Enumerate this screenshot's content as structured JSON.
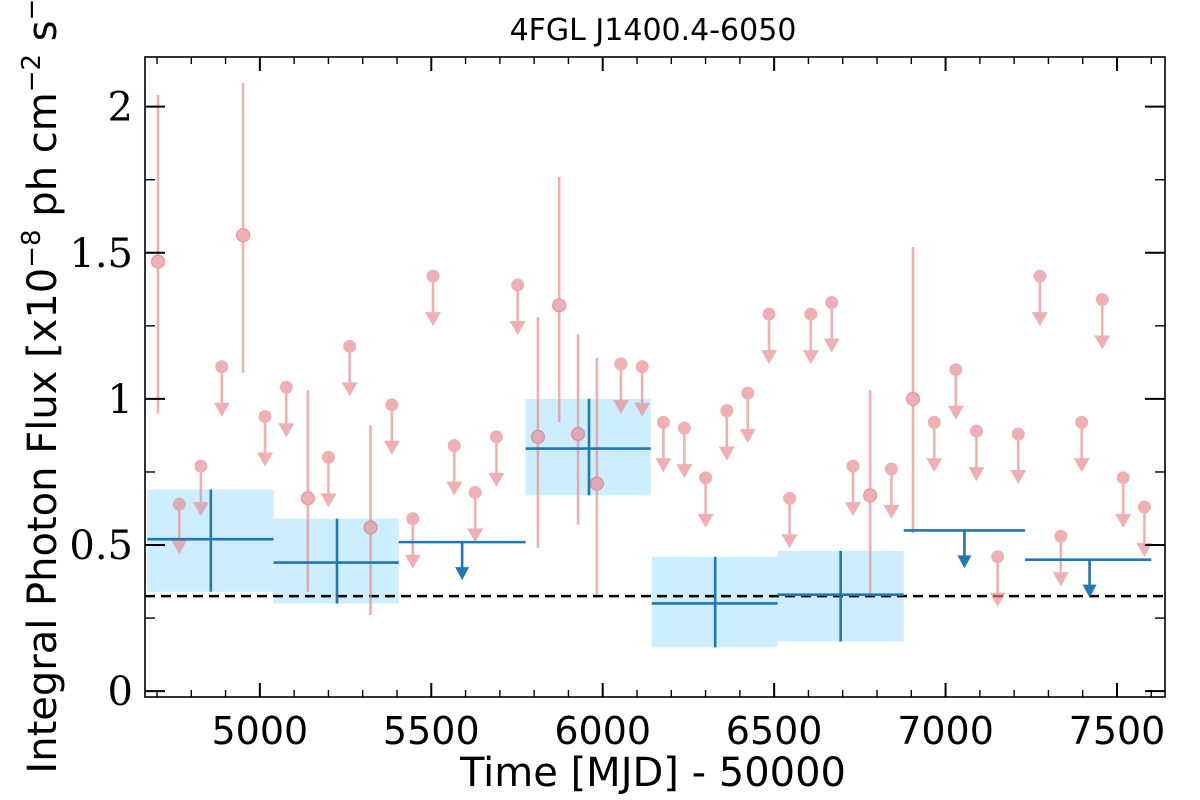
{
  "chart_data": {
    "type": "scatter",
    "title": "4FGL J1400.4-6050",
    "xlabel": "Time [MJD] - 50000",
    "ylabel": "Integral Photon Flux [x10^-8 ph cm^-2 s^-1]",
    "ylabel_parts": [
      "Integral Photon Flux [x10",
      "−8",
      " ph cm",
      "−2",
      " s",
      "−1",
      "]"
    ],
    "xlim": [
      4665,
      7640
    ],
    "ylim": [
      -0.02,
      2.17
    ],
    "xticks": [
      5000,
      5500,
      6000,
      6500,
      7000,
      7500
    ],
    "yticks": [
      0,
      0.5,
      1,
      1.5,
      2
    ],
    "ytick_labels": [
      "0",
      "0.5",
      "1",
      "1.5",
      "2"
    ],
    "grid": false,
    "reference_line": {
      "y": 0.325,
      "style": "dashed",
      "color": "#000000"
    },
    "colors": {
      "short_bins": "#e8878d",
      "long_bins": "#1f77b4",
      "long_bin_band": "#cdeeff"
    },
    "series": [
      {
        "points": [
          {
            "x": 4703,
            "y": 1.47,
            "ylo": 0.95,
            "yhi": 2.04
          },
          {
            "x": 4951,
            "y": 1.56,
            "ylo": 1.09,
            "yhi": 2.08
          },
          {
            "x": 5140,
            "y": 0.66,
            "ylo": 0.34,
            "yhi": 1.03
          },
          {
            "x": 5323,
            "y": 0.56,
            "ylo": 0.26,
            "yhi": 0.91
          },
          {
            "x": 5811,
            "y": 0.87,
            "ylo": 0.49,
            "yhi": 1.28
          },
          {
            "x": 5873,
            "y": 1.32,
            "ylo": 0.92,
            "yhi": 1.76
          },
          {
            "x": 5928,
            "y": 0.88,
            "ylo": 0.57,
            "yhi": 1.22
          },
          {
            "x": 5983,
            "y": 0.71,
            "ylo": 0.33,
            "yhi": 1.14
          },
          {
            "x": 6905,
            "y": 1.0,
            "ylo": 0.54,
            "yhi": 1.52
          },
          {
            "x": 6780,
            "y": 0.67,
            "ylo": 0.33,
            "yhi": 1.03
          }
        ],
        "upper_limits": [
          {
            "x": 4765,
            "y": 0.64
          },
          {
            "x": 4828,
            "y": 0.77
          },
          {
            "x": 4889,
            "y": 1.11
          },
          {
            "x": 5015,
            "y": 0.94
          },
          {
            "x": 5077,
            "y": 1.04
          },
          {
            "x": 5200,
            "y": 0.8
          },
          {
            "x": 5262,
            "y": 1.18
          },
          {
            "x": 5385,
            "y": 0.98
          },
          {
            "x": 5446,
            "y": 0.59
          },
          {
            "x": 5505,
            "y": 1.42
          },
          {
            "x": 5567,
            "y": 0.84
          },
          {
            "x": 5628,
            "y": 0.68
          },
          {
            "x": 5690,
            "y": 0.87
          },
          {
            "x": 5752,
            "y": 1.39
          },
          {
            "x": 6053,
            "y": 1.12
          },
          {
            "x": 6115,
            "y": 1.11
          },
          {
            "x": 6177,
            "y": 0.92
          },
          {
            "x": 6238,
            "y": 0.9
          },
          {
            "x": 6300,
            "y": 0.73
          },
          {
            "x": 6362,
            "y": 0.96
          },
          {
            "x": 6423,
            "y": 1.02
          },
          {
            "x": 6485,
            "y": 1.29
          },
          {
            "x": 6545,
            "y": 0.66
          },
          {
            "x": 6607,
            "y": 1.29
          },
          {
            "x": 6668,
            "y": 1.33
          },
          {
            "x": 6730,
            "y": 0.77
          },
          {
            "x": 6842,
            "y": 0.76
          },
          {
            "x": 6967,
            "y": 0.92
          },
          {
            "x": 7030,
            "y": 1.1
          },
          {
            "x": 7090,
            "y": 0.89
          },
          {
            "x": 7152,
            "y": 0.46
          },
          {
            "x": 7212,
            "y": 0.88
          },
          {
            "x": 7275,
            "y": 1.42
          },
          {
            "x": 7336,
            "y": 0.53
          },
          {
            "x": 7397,
            "y": 0.92
          },
          {
            "x": 7457,
            "y": 1.34
          },
          {
            "x": 7518,
            "y": 0.73
          },
          {
            "x": 7580,
            "y": 0.63
          }
        ]
      },
      {
        "points": [
          {
            "x": 5225,
            "xlo": 5040,
            "xhi": 5405,
            "y": 0.44,
            "ylo": 0.3,
            "yhi": 0.59
          },
          {
            "x": 5960,
            "xlo": 5775,
            "xhi": 6140,
            "y": 0.83,
            "ylo": 0.67,
            "yhi": 1.0
          },
          {
            "x": 6328,
            "xlo": 6143,
            "xhi": 6510,
            "y": 0.3,
            "ylo": 0.15,
            "yhi": 0.46
          },
          {
            "x": 6694,
            "xlo": 6510,
            "xhi": 6878,
            "y": 0.33,
            "ylo": 0.17,
            "yhi": 0.48
          },
          {
            "x": 4857,
            "xlo": 4672,
            "xhi": 5040,
            "y": 0.52,
            "ylo": 0.34,
            "yhi": 0.69
          }
        ],
        "upper_limits": [
          {
            "x": 5590,
            "xlo": 5405,
            "xhi": 5775,
            "y": 0.51
          },
          {
            "x": 7055,
            "xlo": 6878,
            "xhi": 7232,
            "y": 0.55
          },
          {
            "x": 7420,
            "xlo": 7232,
            "xhi": 7600,
            "y": 0.45
          }
        ]
      }
    ]
  }
}
